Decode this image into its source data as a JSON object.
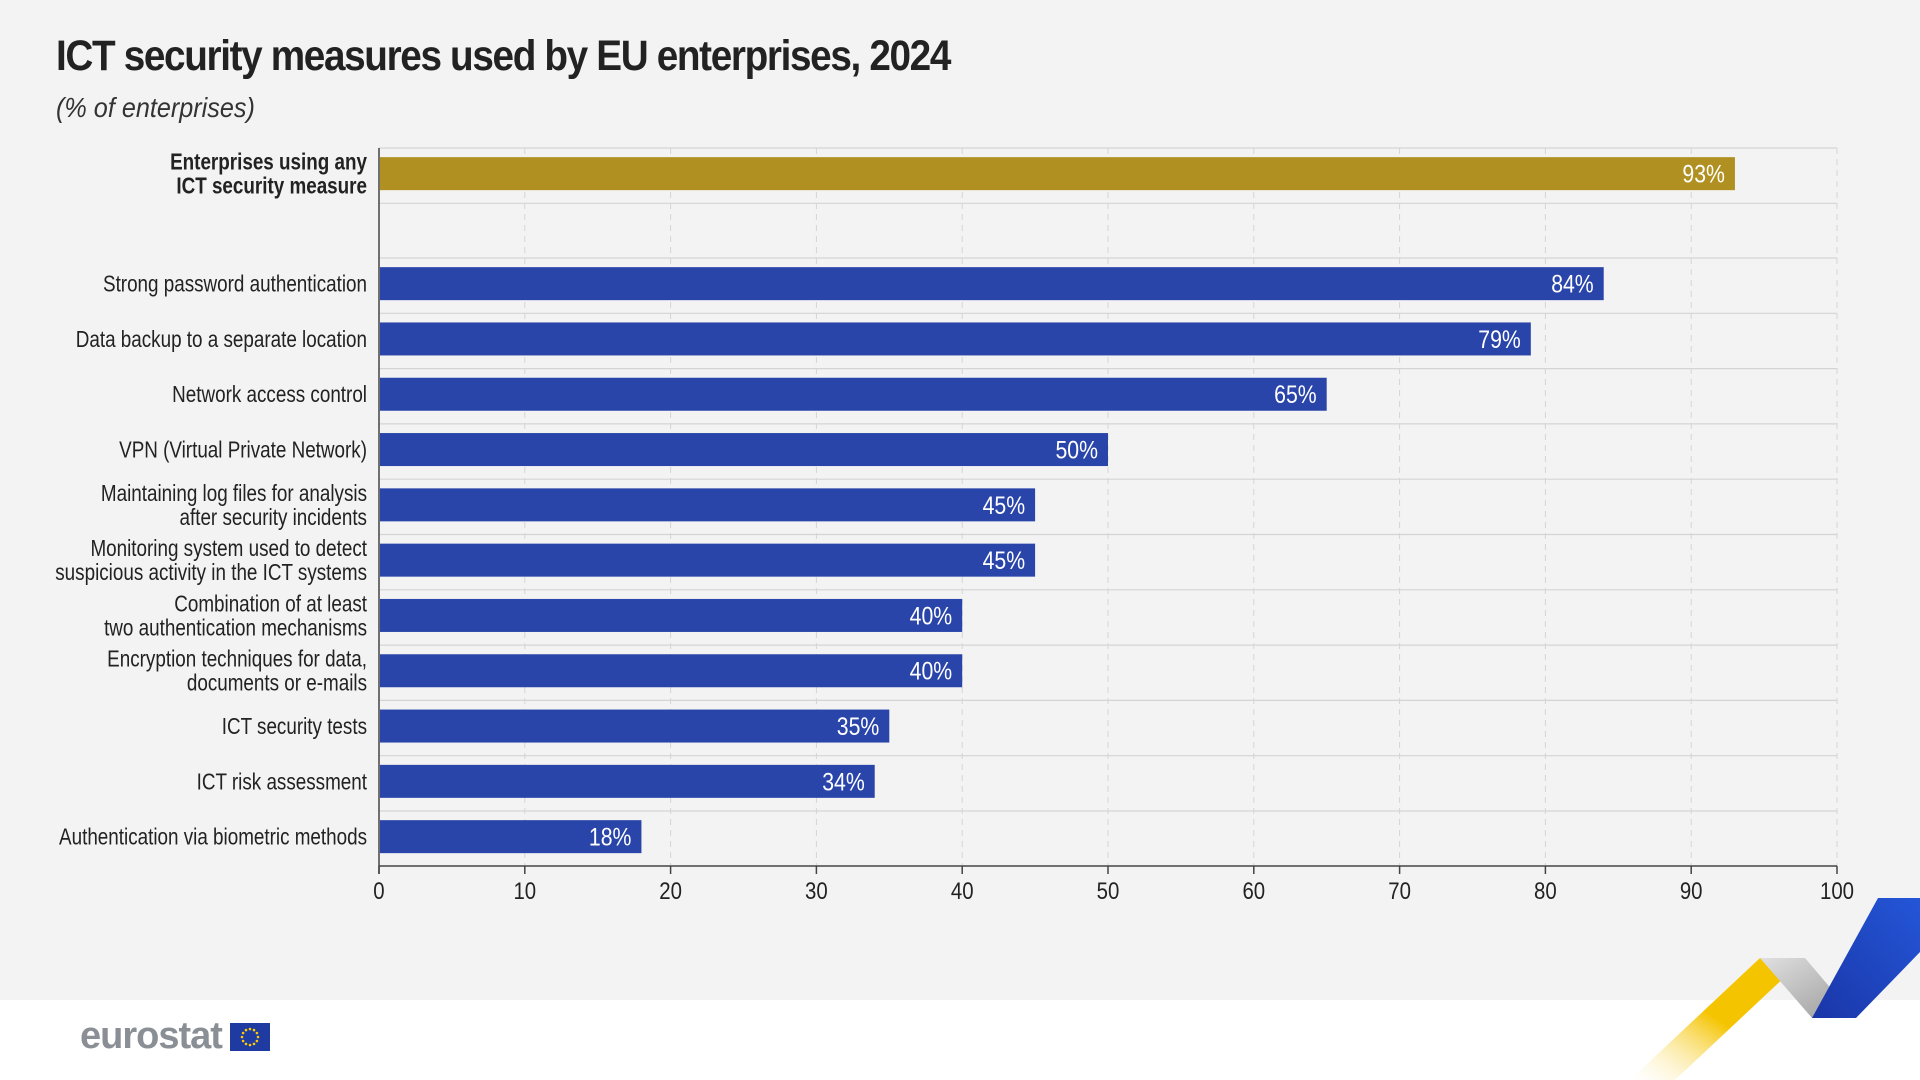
{
  "header": {
    "title": "ICT security measures used by EU enterprises, 2024",
    "subtitle": "(% of enterprises)"
  },
  "brand": {
    "logo_text": "eurostat"
  },
  "colors": {
    "highlight": "#b09020",
    "bar": "#2a45aa",
    "grid": "#d4d4d4",
    "text": "#222222",
    "axis": "#444444"
  },
  "chart_data": {
    "type": "bar",
    "orientation": "horizontal",
    "title": "ICT security measures used by EU enterprises, 2024",
    "subtitle": "(% of enterprises)",
    "xlabel": "",
    "ylabel": "",
    "xlim": [
      0,
      100
    ],
    "xticks": [
      0,
      10,
      20,
      30,
      40,
      50,
      60,
      70,
      80,
      90,
      100
    ],
    "value_suffix": "%",
    "bars": [
      {
        "label": [
          "Enterprises using any",
          "ICT security measure"
        ],
        "value": 93,
        "highlight": true
      },
      {
        "label": [
          "Strong password authentication"
        ],
        "value": 84
      },
      {
        "label": [
          "Data backup to a separate location"
        ],
        "value": 79
      },
      {
        "label": [
          "Network access control"
        ],
        "value": 65
      },
      {
        "label": [
          "VPN (Virtual Private Network)"
        ],
        "value": 50
      },
      {
        "label": [
          "Maintaining log files for analysis",
          "after security incidents"
        ],
        "value": 45
      },
      {
        "label": [
          "Monitoring system used to detect",
          "suspicious activity in the ICT systems"
        ],
        "value": 45
      },
      {
        "label": [
          "Combination of at least",
          "two authentication mechanisms"
        ],
        "value": 40
      },
      {
        "label": [
          "Encryption techniques for data,",
          "documents or e-mails"
        ],
        "value": 40
      },
      {
        "label": [
          "ICT security tests"
        ],
        "value": 35
      },
      {
        "label": [
          "ICT risk assessment"
        ],
        "value": 34
      },
      {
        "label": [
          "Authentication via biometric methods"
        ],
        "value": 18
      }
    ]
  }
}
